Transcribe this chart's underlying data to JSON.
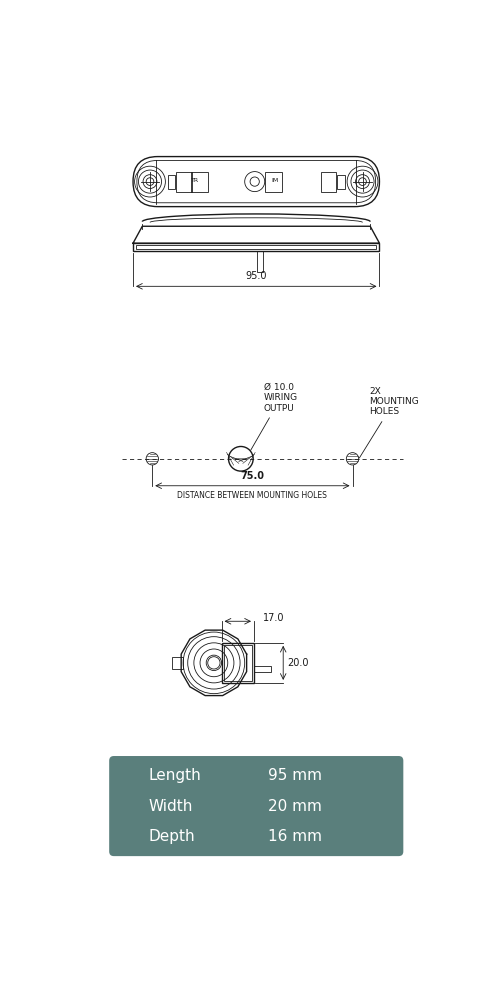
{
  "bg_color": "#ffffff",
  "line_color": "#1a1a1a",
  "table_bg": "#5a7f7c",
  "table_text": "#ffffff",
  "table_rows": [
    [
      "Length",
      "95 mm"
    ],
    [
      "Width",
      "20 mm"
    ],
    [
      "Depth",
      "16 mm"
    ]
  ],
  "dim_95": "95.0",
  "dim_75": "75.0",
  "dim_17": "17.0",
  "dim_20": "20.0",
  "dim_10": "Ø 10.0",
  "label_wiring": "WIRING\nOUTPU",
  "label_mounting": "2X\nMOUNTING\nHOLES",
  "label_distance": "DISTANCE BETWEEN MOUNTING HOLES",
  "font_size_dim": 7,
  "font_size_label": 6,
  "font_size_table": 11
}
